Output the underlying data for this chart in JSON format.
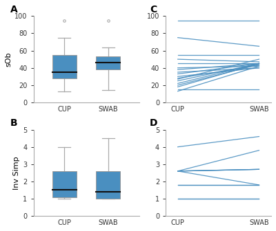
{
  "panel_A": {
    "cup": {
      "median": 35,
      "q1": 28,
      "q3": 55,
      "whisker_low": 13,
      "whisker_high": 75,
      "fliers": [
        95
      ]
    },
    "swab": {
      "median": 46,
      "q1": 38,
      "q3": 53,
      "whisker_low": 14,
      "whisker_high": 64,
      "fliers": [
        95
      ]
    },
    "ylabel": "sOb",
    "ylim": [
      0,
      100
    ],
    "yticks": [
      0,
      20,
      40,
      60,
      80,
      100
    ]
  },
  "panel_B": {
    "cup": {
      "median": 1.5,
      "q1": 1.1,
      "q3": 2.6,
      "whisker_low": 1.0,
      "whisker_high": 4.0,
      "fliers": []
    },
    "swab": {
      "median": 1.4,
      "q1": 1.0,
      "q3": 2.6,
      "whisker_low": 1.0,
      "whisker_high": 4.5,
      "fliers": []
    },
    "ylabel": "Inv Simp",
    "ylim": [
      0,
      5
    ],
    "yticks": [
      0,
      1,
      2,
      3,
      4,
      5
    ]
  },
  "panel_C": {
    "cup_vals": [
      95,
      75,
      55,
      50,
      45,
      40,
      38,
      35,
      33,
      30,
      28,
      27,
      25,
      22,
      20,
      18,
      15,
      13
    ],
    "swab_vals": [
      95,
      65,
      55,
      47,
      45,
      42,
      45,
      40,
      45,
      40,
      43,
      50,
      45,
      45,
      44,
      45,
      15,
      42
    ],
    "ylim": [
      0,
      100
    ],
    "yticks": [
      0,
      20,
      40,
      60,
      80,
      100
    ]
  },
  "panel_D": {
    "cup_vals": [
      1.0,
      1.0,
      1.8,
      1.8,
      2.6,
      2.6,
      2.6,
      2.6,
      2.6,
      4.0
    ],
    "swab_vals": [
      1.0,
      1.0,
      1.8,
      1.8,
      2.7,
      2.7,
      2.7,
      3.8,
      1.8,
      4.6
    ],
    "ylim": [
      0,
      5
    ],
    "yticks": [
      0,
      1,
      2,
      3,
      4,
      5
    ]
  },
  "box_color": "#4a8fc0",
  "box_edge_color": "#999999",
  "median_color": "#111111",
  "whisker_color": "#aaaaaa",
  "line_color": "#4a8fc0",
  "flier_color": "#aaaaaa",
  "bg_color": "#f0f0f0",
  "label_fontsize": 8,
  "tick_fontsize": 7,
  "panel_label_fontsize": 10
}
